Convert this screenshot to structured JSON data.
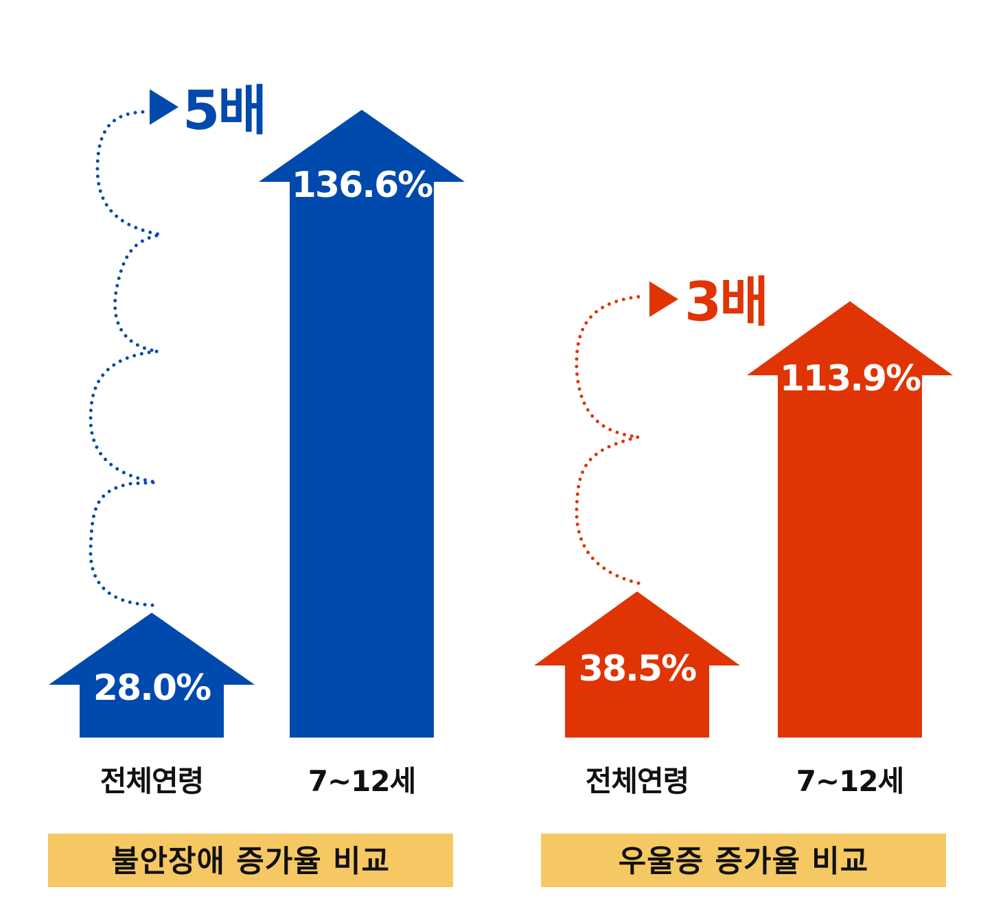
{
  "colors": {
    "anxiety": "#0049ad",
    "depression": "#e03404",
    "title_bg": "#f6c863"
  },
  "chart_data": [
    {
      "type": "bar",
      "title": "불안장애 증가율 비교",
      "categories": [
        "전체연령",
        "7~12세"
      ],
      "values": [
        28.0,
        136.6
      ],
      "value_labels": [
        "28.0%",
        "136.6%"
      ],
      "ratio_label": "5배",
      "color": "#0049ad"
    },
    {
      "type": "bar",
      "title": "우울증 증가율 비교",
      "categories": [
        "전체연령",
        "7~12세"
      ],
      "values": [
        38.5,
        113.9
      ],
      "value_labels": [
        "38.5%",
        "113.9%"
      ],
      "ratio_label": "3배",
      "color": "#e03404"
    }
  ]
}
